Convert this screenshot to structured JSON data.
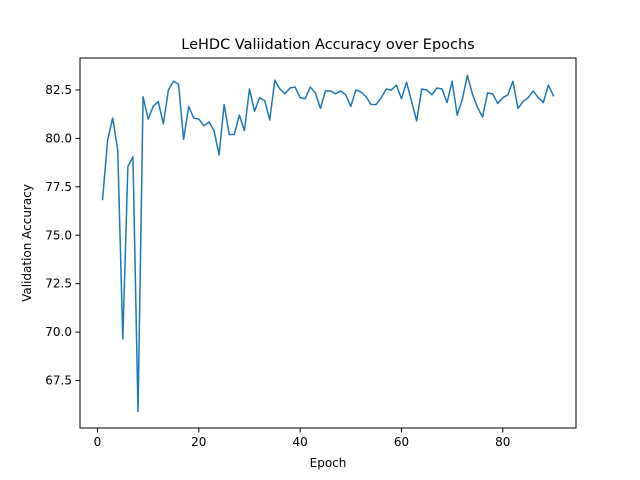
{
  "chart_data": {
    "type": "line",
    "title": "LeHDC Valiidation Accuracy over Epochs",
    "xlabel": "Epoch",
    "ylabel": "Validation Accuracy",
    "xlim": [
      -3.45,
      94.45
    ],
    "ylim": [
      65.05,
      84.15
    ],
    "x_ticks": [
      0,
      20,
      40,
      60,
      80
    ],
    "x_tick_labels": [
      "0",
      "20",
      "40",
      "60",
      "80"
    ],
    "y_ticks": [
      67.5,
      70.0,
      72.5,
      75.0,
      77.5,
      80.0,
      82.5
    ],
    "y_tick_labels": [
      "67.5",
      "70.0",
      "72.5",
      "75.0",
      "77.5",
      "80.0",
      "82.5"
    ],
    "grid": false,
    "line_color": "#1f77b4",
    "series": [
      {
        "x": [
          1,
          2,
          3,
          4,
          5,
          6,
          7,
          8,
          9,
          10,
          11,
          12,
          13,
          14,
          15,
          16,
          17,
          18,
          19,
          20,
          21,
          22,
          23,
          24,
          25,
          26,
          27,
          28,
          29,
          30,
          31,
          32,
          33,
          34,
          35,
          36,
          37,
          38,
          39,
          40,
          41,
          42,
          43,
          44,
          45,
          46,
          47,
          48,
          49,
          50,
          51,
          52,
          53,
          54,
          55,
          56,
          57,
          58,
          59,
          60,
          61,
          62,
          63,
          64,
          65,
          66,
          67,
          68,
          69,
          70,
          71,
          72,
          73,
          74,
          75,
          76,
          77,
          78,
          79,
          80,
          81,
          82,
          83,
          84,
          85,
          86,
          87,
          88,
          89,
          90
        ],
        "values": [
          76.85,
          79.9,
          81.05,
          79.4,
          69.65,
          78.55,
          79.05,
          65.9,
          82.15,
          81.0,
          81.65,
          81.9,
          80.75,
          82.5,
          82.95,
          82.8,
          79.95,
          81.65,
          81.05,
          81.0,
          80.65,
          80.85,
          80.4,
          79.15,
          81.75,
          80.2,
          80.2,
          81.2,
          80.4,
          82.55,
          81.4,
          82.1,
          81.95,
          80.95,
          83.0,
          82.55,
          82.3,
          82.6,
          82.65,
          82.1,
          82.05,
          82.65,
          82.35,
          81.55,
          82.45,
          82.45,
          82.3,
          82.45,
          82.25,
          81.65,
          82.5,
          82.4,
          82.15,
          81.75,
          81.75,
          82.1,
          82.55,
          82.5,
          82.75,
          82.05,
          82.9,
          81.9,
          80.9,
          82.55,
          82.5,
          82.25,
          82.6,
          82.55,
          81.85,
          82.95,
          81.2,
          82.0,
          83.25,
          82.3,
          81.6,
          81.1,
          82.35,
          82.3,
          81.8,
          82.1,
          82.25,
          82.95,
          81.55,
          81.9,
          82.1,
          82.45,
          82.1,
          81.85,
          82.75,
          82.2
        ]
      }
    ]
  }
}
